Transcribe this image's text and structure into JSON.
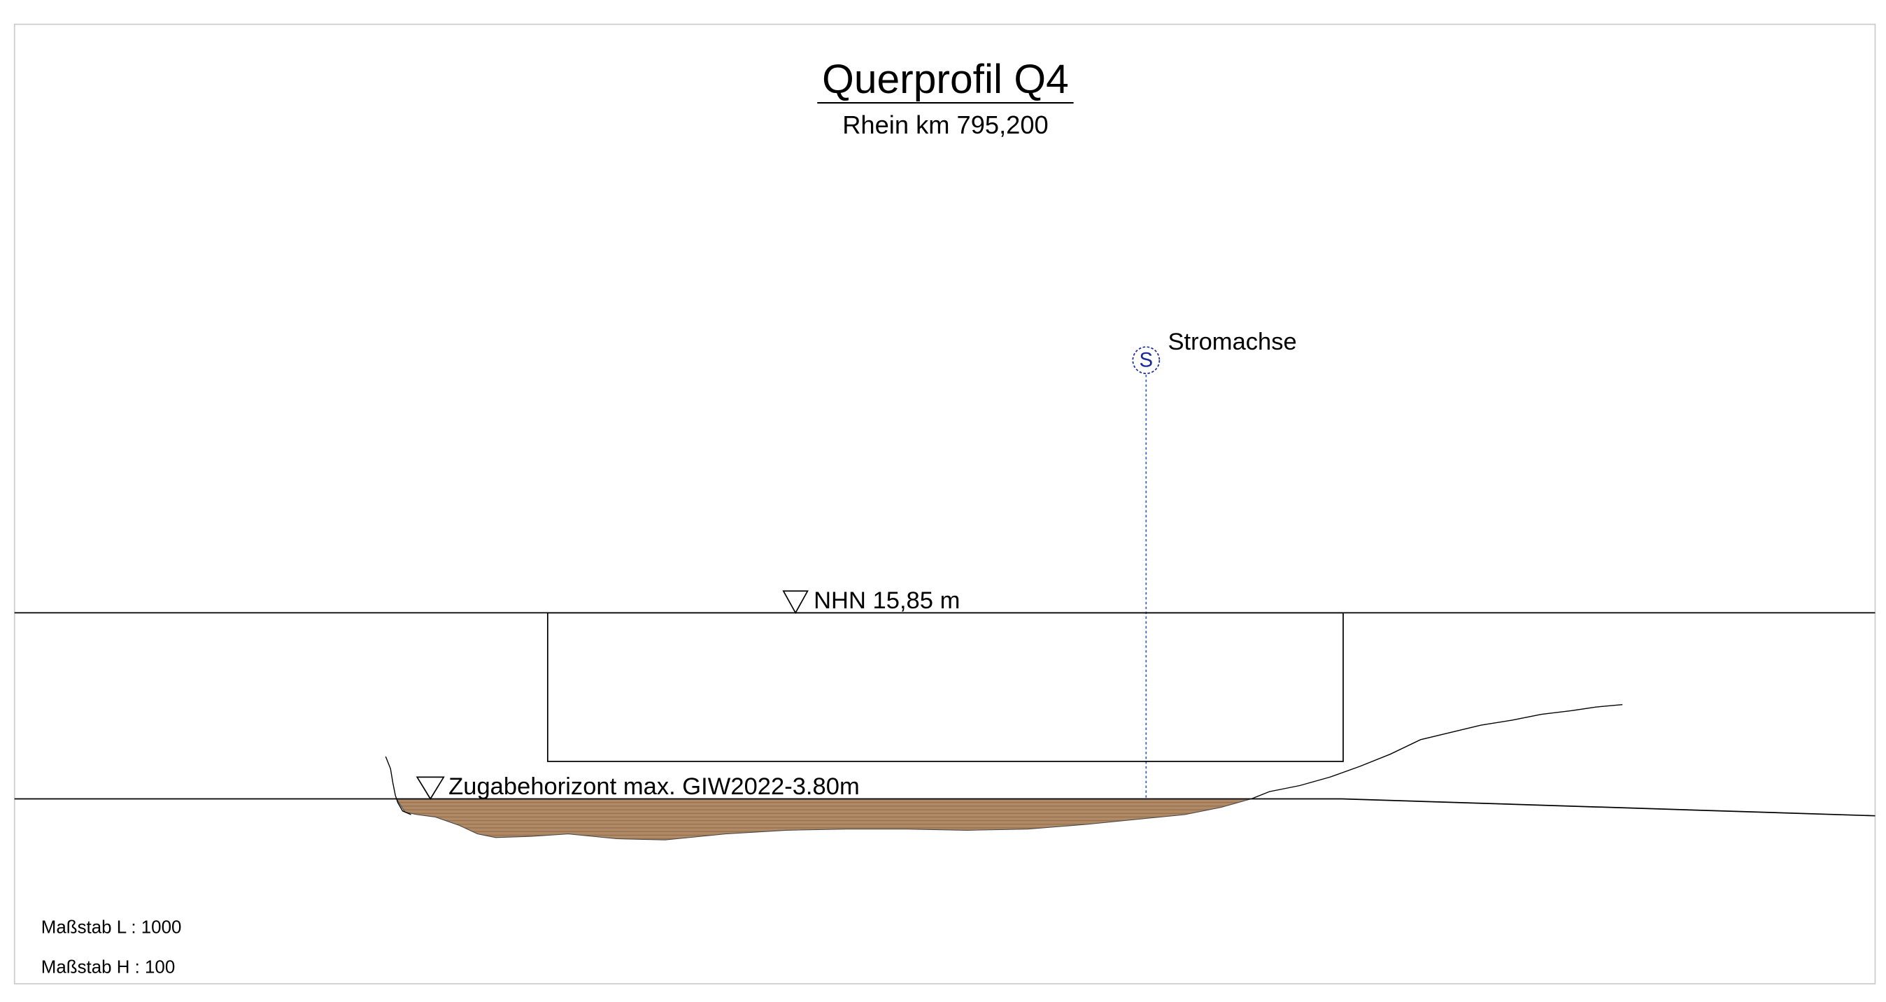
{
  "header": {
    "title": "Querprofil Q4",
    "subtitle": "Rhein km 795,200"
  },
  "axis": {
    "symbol": "S",
    "label": "Stromachse"
  },
  "levels": [
    {
      "label": "NHN 15,85 m"
    },
    {
      "label": "Zugabehorizont max. GIW2022-3.80m"
    }
  ],
  "scales": [
    "Maßstab L : 1000",
    "Maßstab H : 100"
  ]
}
